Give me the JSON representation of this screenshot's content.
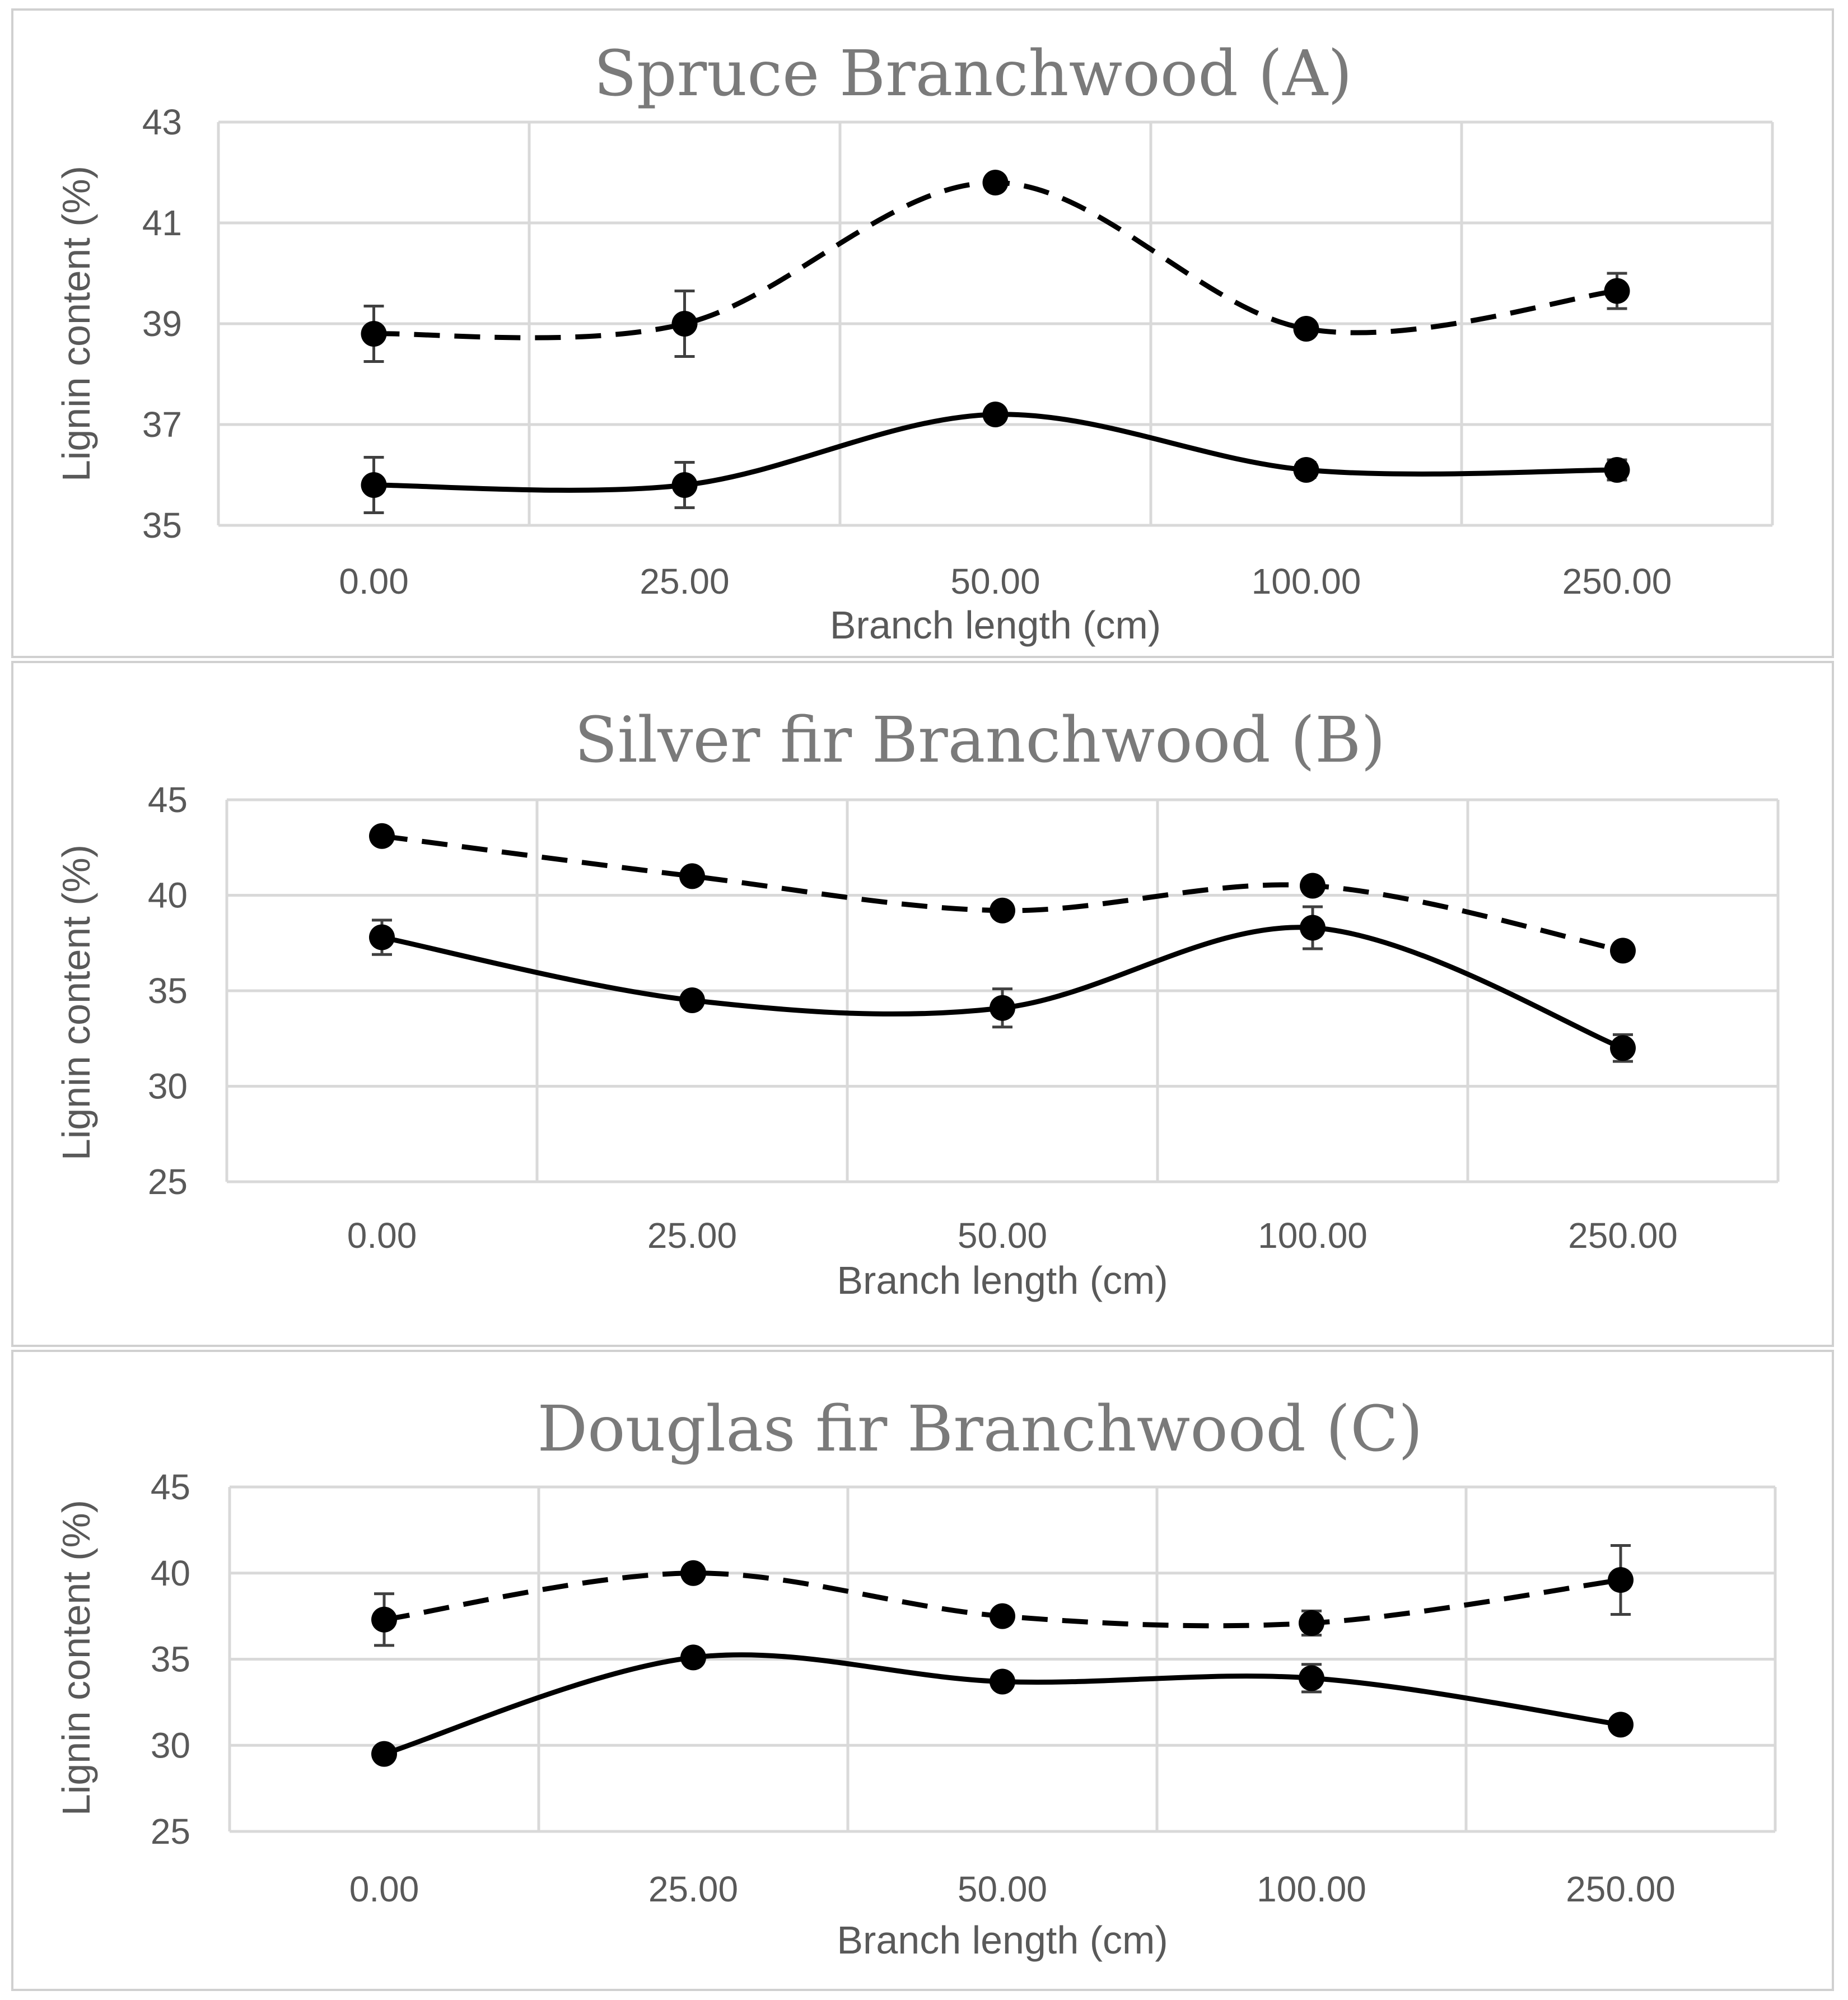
{
  "chart_data": [
    {
      "type": "line",
      "title": "Spruce Branchwood (A)",
      "xlabel": "Branch length (cm)",
      "ylabel": "Lignin content (%)",
      "categories": [
        "0.00",
        "25.00",
        "50.00",
        "100.00",
        "250.00"
      ],
      "ylim": [
        35,
        43
      ],
      "yticks": [
        "35",
        "37",
        "39",
        "41",
        "43"
      ],
      "grid": true,
      "series": [
        {
          "style": "dashed",
          "values": [
            38.8,
            39.0,
            41.8,
            38.9,
            39.65
          ],
          "errors": [
            0.55,
            0.65,
            0.0,
            0.0,
            0.35
          ]
        },
        {
          "style": "solid",
          "values": [
            35.8,
            35.8,
            37.2,
            36.1,
            36.1
          ],
          "errors": [
            0.55,
            0.45,
            0.1,
            0.15,
            0.2
          ]
        }
      ]
    },
    {
      "type": "line",
      "title": "Silver fir Branchwood (B)",
      "xlabel": "Branch length (cm)",
      "ylabel": "Lignin content (%)",
      "categories": [
        "0.00",
        "25.00",
        "50.00",
        "100.00",
        "250.00"
      ],
      "ylim": [
        25,
        45
      ],
      "yticks": [
        "25",
        "30",
        "35",
        "40",
        "45"
      ],
      "grid": true,
      "series": [
        {
          "style": "dashed",
          "values": [
            43.1,
            41.0,
            39.2,
            40.5,
            37.1
          ],
          "errors": [
            0.0,
            0.0,
            0.0,
            0.0,
            0.0
          ]
        },
        {
          "style": "solid",
          "values": [
            37.8,
            34.5,
            34.1,
            38.3,
            32.0
          ],
          "errors": [
            0.9,
            0.0,
            1.0,
            1.1,
            0.7
          ]
        }
      ]
    },
    {
      "type": "line",
      "title": "Douglas fir Branchwood (C)",
      "xlabel": "Branch length (cm)",
      "ylabel": "Lignin content (%)",
      "categories": [
        "0.00",
        "25.00",
        "50.00",
        "100.00",
        "250.00"
      ],
      "ylim": [
        25,
        45
      ],
      "yticks": [
        "25",
        "30",
        "35",
        "40",
        "45"
      ],
      "grid": true,
      "series": [
        {
          "style": "dashed",
          "values": [
            37.3,
            40.0,
            37.5,
            37.1,
            39.6
          ],
          "errors": [
            1.5,
            0.0,
            0.0,
            0.7,
            2.0
          ]
        },
        {
          "style": "solid",
          "values": [
            29.5,
            35.1,
            33.7,
            33.9,
            31.2
          ],
          "errors": [
            0.0,
            0.0,
            0.0,
            0.8,
            0.0
          ]
        }
      ]
    }
  ]
}
